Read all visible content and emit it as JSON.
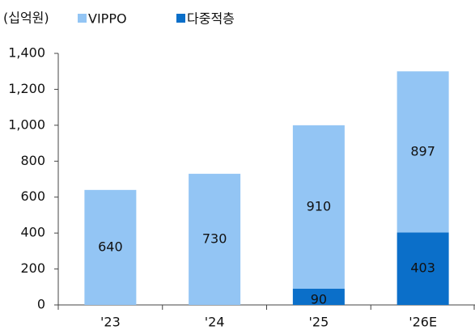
{
  "chart_data": {
    "type": "stacked_bar",
    "y_label": "(십억원)",
    "categories": [
      "'23",
      "'24",
      "'25",
      "'26E"
    ],
    "series": [
      {
        "name": "다중적층",
        "color": "#0b6fc9",
        "values": [
          null,
          null,
          90,
          403
        ]
      },
      {
        "name": "VIPPO",
        "color": "#93c5f4",
        "values": [
          640,
          730,
          910,
          897
        ]
      }
    ],
    "legend_order": [
      1,
      0
    ],
    "ylim": [
      0,
      1400
    ],
    "yticks": [
      0,
      200,
      400,
      600,
      800,
      {
        "value": 1000,
        "label": "1,000"
      },
      {
        "value": 1200,
        "label": "1,200"
      },
      {
        "value": 1400,
        "label": "1,400"
      }
    ],
    "grid": false
  }
}
